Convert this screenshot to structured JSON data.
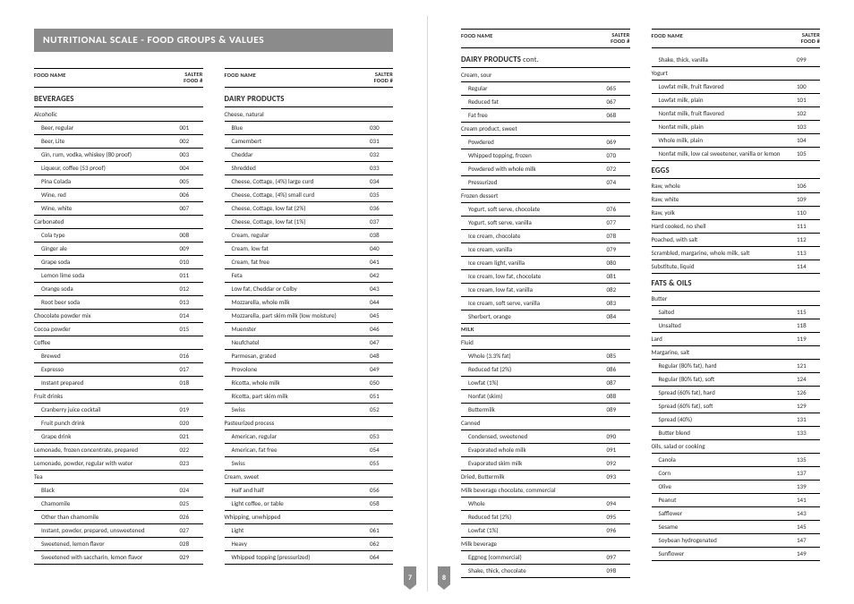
{
  "title": "NUTRITIONAL SCALE - FOOD GROUPS & VALUES",
  "header_name": "FOOD NAME",
  "header_num": "SALTER\nFOOD #",
  "pagenum_left": "7",
  "pagenum_right": "8",
  "col1": [
    {
      "t": "group",
      "label": "BEVERAGES"
    },
    {
      "t": "sub",
      "label": "Alcoholic"
    },
    {
      "t": "row",
      "i": 1,
      "name": "Beer, regular",
      "num": "001"
    },
    {
      "t": "row",
      "i": 1,
      "name": "Beer, Lite",
      "num": "002"
    },
    {
      "t": "row",
      "i": 1,
      "name": "Gin, rum, vodka, whiskey (80 proof)",
      "num": "003"
    },
    {
      "t": "row",
      "i": 1,
      "name": "Liqueur, coffee (53 proof)",
      "num": "004"
    },
    {
      "t": "row",
      "i": 1,
      "name": "Pina Colada",
      "num": "005"
    },
    {
      "t": "row",
      "i": 1,
      "name": "Wine, red",
      "num": "006"
    },
    {
      "t": "row",
      "i": 1,
      "name": "Wine, white",
      "num": "007"
    },
    {
      "t": "sub",
      "label": "Carbonated"
    },
    {
      "t": "row",
      "i": 1,
      "name": "Cola type",
      "num": "008"
    },
    {
      "t": "row",
      "i": 1,
      "name": "Ginger ale",
      "num": "009"
    },
    {
      "t": "row",
      "i": 1,
      "name": "Grape soda",
      "num": "010"
    },
    {
      "t": "row",
      "i": 1,
      "name": "Lemon lime soda",
      "num": "011"
    },
    {
      "t": "row",
      "i": 1,
      "name": "Orange soda",
      "num": "012"
    },
    {
      "t": "row",
      "i": 1,
      "name": "Root beer soda",
      "num": "013"
    },
    {
      "t": "row",
      "i": 0,
      "name": "Chocolate powder mix",
      "num": "014"
    },
    {
      "t": "row",
      "i": 0,
      "name": "Cocoa powder",
      "num": "015"
    },
    {
      "t": "sub",
      "label": "Coffee"
    },
    {
      "t": "row",
      "i": 1,
      "name": "Brewed",
      "num": "016"
    },
    {
      "t": "row",
      "i": 1,
      "name": "Expresso",
      "num": "017"
    },
    {
      "t": "row",
      "i": 1,
      "name": "Instant prepared",
      "num": "018"
    },
    {
      "t": "sub",
      "label": "Fruit drinks"
    },
    {
      "t": "row",
      "i": 1,
      "name": "Cranberry juice cocktail",
      "num": "019"
    },
    {
      "t": "row",
      "i": 1,
      "name": "Fruit punch drink",
      "num": "020"
    },
    {
      "t": "row",
      "i": 1,
      "name": "Grape drink",
      "num": "021"
    },
    {
      "t": "row",
      "i": 0,
      "name": "Lemonade, frozen concentrate, prepared",
      "num": "022"
    },
    {
      "t": "row",
      "i": 0,
      "name": "Lemonade, powder, regular with water",
      "num": "023"
    },
    {
      "t": "sub",
      "label": "Tea"
    },
    {
      "t": "row",
      "i": 1,
      "name": "Black",
      "num": "024"
    },
    {
      "t": "row",
      "i": 1,
      "name": "Chamomile",
      "num": "025"
    },
    {
      "t": "row",
      "i": 1,
      "name": "Other than chamomile",
      "num": "026"
    },
    {
      "t": "row",
      "i": 1,
      "name": "Instant, powder, prepared, unsweetened",
      "num": "027"
    },
    {
      "t": "row",
      "i": 1,
      "name": "Sweetened, lemon flavor",
      "num": "028"
    },
    {
      "t": "row",
      "i": 1,
      "name": "Sweetened with saccharin, lemon flavor",
      "num": "029",
      "last": true
    }
  ],
  "col2": [
    {
      "t": "group",
      "label": "DAIRY PRODUCTS"
    },
    {
      "t": "sub",
      "label": "Cheese, natural"
    },
    {
      "t": "row",
      "i": 1,
      "name": "Blue",
      "num": "030"
    },
    {
      "t": "row",
      "i": 1,
      "name": "Camembert",
      "num": "031"
    },
    {
      "t": "row",
      "i": 1,
      "name": "Cheddar",
      "num": "032"
    },
    {
      "t": "row",
      "i": 1,
      "name": "Shredded",
      "num": "033"
    },
    {
      "t": "row",
      "i": 1,
      "name": "Cheese, Cottage, (4%) large curd",
      "num": "034"
    },
    {
      "t": "row",
      "i": 1,
      "name": "Cheese, Cottage, (4%) small curd",
      "num": "035"
    },
    {
      "t": "row",
      "i": 1,
      "name": "Cheese, Cottage, low fat (2%)",
      "num": "036"
    },
    {
      "t": "row",
      "i": 1,
      "name": "Cheese, Cottage, low fat (1%)",
      "num": "037"
    },
    {
      "t": "row",
      "i": 1,
      "name": "Cream, regular",
      "num": "038"
    },
    {
      "t": "row",
      "i": 1,
      "name": "Cream, low fat",
      "num": "040"
    },
    {
      "t": "row",
      "i": 1,
      "name": "Cream, fat free",
      "num": "041"
    },
    {
      "t": "row",
      "i": 1,
      "name": "Feta",
      "num": "042"
    },
    {
      "t": "row",
      "i": 1,
      "name": "Low fat, Cheddar or Colby",
      "num": "043"
    },
    {
      "t": "row",
      "i": 1,
      "name": "Mozzarella, whole milk",
      "num": "044"
    },
    {
      "t": "row",
      "i": 1,
      "name": "Mozzarella, part skim milk (low moisture)",
      "num": "045"
    },
    {
      "t": "row",
      "i": 1,
      "name": "Muenster",
      "num": "046"
    },
    {
      "t": "row",
      "i": 1,
      "name": "Neufchatel",
      "num": "047"
    },
    {
      "t": "row",
      "i": 1,
      "name": "Parmesan, grated",
      "num": "048"
    },
    {
      "t": "row",
      "i": 1,
      "name": "Provolone",
      "num": "049"
    },
    {
      "t": "row",
      "i": 1,
      "name": "Ricotta, whole milk",
      "num": "050"
    },
    {
      "t": "row",
      "i": 1,
      "name": "Ricotta, part skim milk",
      "num": "051"
    },
    {
      "t": "row",
      "i": 1,
      "name": "Swiss",
      "num": "052"
    },
    {
      "t": "sub",
      "label": "Pasteurized process"
    },
    {
      "t": "row",
      "i": 1,
      "name": "American, regular",
      "num": "053"
    },
    {
      "t": "row",
      "i": 1,
      "name": "American, fat free",
      "num": "054"
    },
    {
      "t": "row",
      "i": 1,
      "name": "Swiss",
      "num": "055"
    },
    {
      "t": "sub",
      "label": "Cream, sweet"
    },
    {
      "t": "row",
      "i": 1,
      "name": "Half and half",
      "num": "056"
    },
    {
      "t": "row",
      "i": 1,
      "name": "Light coffee, or table",
      "num": "058"
    },
    {
      "t": "sub",
      "label": "Whipping, unwhipped"
    },
    {
      "t": "row",
      "i": 1,
      "name": "Light",
      "num": "061"
    },
    {
      "t": "row",
      "i": 1,
      "name": "Heavy",
      "num": "062"
    },
    {
      "t": "row",
      "i": 1,
      "name": "Whipped topping (pressurized)",
      "num": "064",
      "last": true
    }
  ],
  "col3": [
    {
      "t": "group",
      "label": "DAIRY PRODUCTS",
      "cont": " cont."
    },
    {
      "t": "sub",
      "label": "Cream, sour"
    },
    {
      "t": "row",
      "i": 1,
      "name": "Regular",
      "num": "065"
    },
    {
      "t": "row",
      "i": 1,
      "name": "Reduced fat",
      "num": "067"
    },
    {
      "t": "row",
      "i": 1,
      "name": "Fat free",
      "num": "068"
    },
    {
      "t": "sub",
      "label": "Cream product, sweet"
    },
    {
      "t": "row",
      "i": 1,
      "name": "Powdered",
      "num": "069"
    },
    {
      "t": "row",
      "i": 1,
      "name": "Whipped topping, frozen",
      "num": "070"
    },
    {
      "t": "row",
      "i": 1,
      "name": "Powdered with whole milk",
      "num": "072"
    },
    {
      "t": "row",
      "i": 1,
      "name": "Pressurized",
      "num": "074"
    },
    {
      "t": "sub",
      "label": "Frozen dessert"
    },
    {
      "t": "row",
      "i": 1,
      "name": "Yogurt, soft serve, chocolate",
      "num": "076"
    },
    {
      "t": "row",
      "i": 1,
      "name": "Yogurt, soft serve, vanilla",
      "num": "077"
    },
    {
      "t": "row",
      "i": 1,
      "name": "Ice cream, chocolate",
      "num": "078"
    },
    {
      "t": "row",
      "i": 1,
      "name": "Ice cream, vanilla",
      "num": "079"
    },
    {
      "t": "row",
      "i": 1,
      "name": "Ice cream light, vanilla",
      "num": "080"
    },
    {
      "t": "row",
      "i": 1,
      "name": "Ice cream, low fat, chocolate",
      "num": "081"
    },
    {
      "t": "row",
      "i": 1,
      "name": "Ice cream, low fat, vanilla",
      "num": "082"
    },
    {
      "t": "row",
      "i": 1,
      "name": "Ice cream, soft serve, vanilla",
      "num": "083"
    },
    {
      "t": "row",
      "i": 1,
      "name": "Sherbert, orange",
      "num": "084"
    },
    {
      "t": "milk",
      "label": "MILK"
    },
    {
      "t": "sub",
      "label": "Fluid"
    },
    {
      "t": "row",
      "i": 1,
      "name": "Whole (3.3% fat)",
      "num": "085"
    },
    {
      "t": "row",
      "i": 1,
      "name": "Reduced fat (2%)",
      "num": "086"
    },
    {
      "t": "row",
      "i": 1,
      "name": "Lowfat (1%)",
      "num": "087"
    },
    {
      "t": "row",
      "i": 1,
      "name": "Nonfat (skim)",
      "num": "088"
    },
    {
      "t": "row",
      "i": 1,
      "name": "Buttermilk",
      "num": "089"
    },
    {
      "t": "sub",
      "label": "Canned"
    },
    {
      "t": "row",
      "i": 1,
      "name": "Condensed, sweetened",
      "num": "090"
    },
    {
      "t": "row",
      "i": 1,
      "name": "Evaporated whole milk",
      "num": "091"
    },
    {
      "t": "row",
      "i": 1,
      "name": "Evaporated skim milk",
      "num": "092"
    },
    {
      "t": "row",
      "i": 0,
      "name": "Dried, Buttermilk",
      "num": "093"
    },
    {
      "t": "sub",
      "label": "Milk beverage chocolate, commercial"
    },
    {
      "t": "row",
      "i": 1,
      "name": "Whole",
      "num": "094"
    },
    {
      "t": "row",
      "i": 1,
      "name": "Reduced fat (2%)",
      "num": "095"
    },
    {
      "t": "row",
      "i": 1,
      "name": "Lowfat (1%)",
      "num": "096"
    },
    {
      "t": "sub",
      "label": "Milk beverage"
    },
    {
      "t": "row",
      "i": 1,
      "name": "Eggnog (commercial)",
      "num": "097"
    },
    {
      "t": "row",
      "i": 1,
      "name": "Shake, thick, chocolate",
      "num": "098",
      "last": true
    }
  ],
  "col4": [
    {
      "t": "row",
      "i": 1,
      "name": "Shake, thick, vanilla",
      "num": "099"
    },
    {
      "t": "sub",
      "label": "Yogurt"
    },
    {
      "t": "row",
      "i": 1,
      "name": "Lowfat milk, fruit flavored",
      "num": "100"
    },
    {
      "t": "row",
      "i": 1,
      "name": "Lowfat milk, plain",
      "num": "101"
    },
    {
      "t": "row",
      "i": 1,
      "name": "Nonfat milk, fruit flavored",
      "num": "102"
    },
    {
      "t": "row",
      "i": 1,
      "name": "Nonfat milk, plain",
      "num": "103"
    },
    {
      "t": "row",
      "i": 1,
      "name": "Whole milk, plain",
      "num": "104"
    },
    {
      "t": "row",
      "i": 1,
      "name": "Nonfat milk, low cal sweetener, vanilla or lemon",
      "num": "105",
      "last": true
    },
    {
      "t": "group",
      "label": "EGGS"
    },
    {
      "t": "row",
      "i": 0,
      "name": "Raw, whole",
      "num": "106"
    },
    {
      "t": "row",
      "i": 0,
      "name": "Raw, white",
      "num": "109"
    },
    {
      "t": "row",
      "i": 0,
      "name": "Raw, yolk",
      "num": "110"
    },
    {
      "t": "row",
      "i": 0,
      "name": "Hard cooked, no shell",
      "num": "111"
    },
    {
      "t": "row",
      "i": 0,
      "name": "Poached, with salt",
      "num": "112"
    },
    {
      "t": "row",
      "i": 0,
      "name": "Scrambled, margarine, whole milk, salt",
      "num": "113"
    },
    {
      "t": "row",
      "i": 0,
      "name": "Substitute, liquid",
      "num": "114",
      "last": true
    },
    {
      "t": "group",
      "label": "FATS & OILS"
    },
    {
      "t": "sub",
      "label": "Butter"
    },
    {
      "t": "row",
      "i": 1,
      "name": "Salted",
      "num": "115"
    },
    {
      "t": "row",
      "i": 1,
      "name": "Unsalted",
      "num": "118"
    },
    {
      "t": "row",
      "i": 0,
      "name": "Lard",
      "num": "119"
    },
    {
      "t": "sub",
      "label": "Margarine, salt"
    },
    {
      "t": "row",
      "i": 1,
      "name": "Regular (80% fat), hard",
      "num": "121"
    },
    {
      "t": "row",
      "i": 1,
      "name": "Regular (80% fat), soft",
      "num": "124"
    },
    {
      "t": "row",
      "i": 1,
      "name": "Spread (60% fat), hard",
      "num": "126"
    },
    {
      "t": "row",
      "i": 1,
      "name": "Spread (60% fat), soft",
      "num": "129"
    },
    {
      "t": "row",
      "i": 1,
      "name": "Spread (40%)",
      "num": "131"
    },
    {
      "t": "row",
      "i": 1,
      "name": "Butter blend",
      "num": "133"
    },
    {
      "t": "sub",
      "label": "Oils, salad or cooking"
    },
    {
      "t": "row",
      "i": 1,
      "name": "Canola",
      "num": "135"
    },
    {
      "t": "row",
      "i": 1,
      "name": "Corn",
      "num": "137"
    },
    {
      "t": "row",
      "i": 1,
      "name": "Olive",
      "num": "139"
    },
    {
      "t": "row",
      "i": 1,
      "name": "Peanut",
      "num": "141"
    },
    {
      "t": "row",
      "i": 1,
      "name": "Safflower",
      "num": "143"
    },
    {
      "t": "row",
      "i": 1,
      "name": "Sesame",
      "num": "145"
    },
    {
      "t": "row",
      "i": 1,
      "name": "Soybean hydrogenated",
      "num": "147"
    },
    {
      "t": "row",
      "i": 1,
      "name": "Sunflower",
      "num": "149",
      "last": true
    }
  ]
}
